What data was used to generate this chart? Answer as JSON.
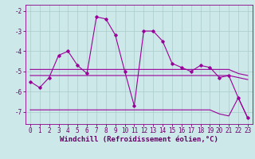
{
  "xlabel": "Windchill (Refroidissement éolien,°C)",
  "x": [
    0,
    1,
    2,
    3,
    4,
    5,
    6,
    7,
    8,
    9,
    10,
    11,
    12,
    13,
    14,
    15,
    16,
    17,
    18,
    19,
    20,
    21,
    22,
    23
  ],
  "line1": [
    -5.5,
    -5.8,
    -5.3,
    -4.2,
    -4.0,
    -4.7,
    -5.1,
    -2.3,
    -2.4,
    -3.2,
    -5.0,
    -6.7,
    -3.0,
    -3.0,
    -3.5,
    -4.6,
    -4.8,
    -5.0,
    -4.7,
    -4.8,
    -5.3,
    -5.2,
    -6.3,
    -7.3
  ],
  "line2": [
    -4.9,
    -4.9,
    -4.9,
    -4.9,
    -4.9,
    -4.9,
    -4.9,
    -4.9,
    -4.9,
    -4.9,
    -4.9,
    -4.9,
    -4.9,
    -4.9,
    -4.9,
    -4.9,
    -4.9,
    -4.9,
    -4.9,
    -4.9,
    -4.9,
    -4.9,
    -5.1,
    -5.2
  ],
  "line3": [
    -5.2,
    -5.2,
    -5.2,
    -5.2,
    -5.2,
    -5.2,
    -5.2,
    -5.2,
    -5.2,
    -5.2,
    -5.2,
    -5.2,
    -5.2,
    -5.2,
    -5.2,
    -5.2,
    -5.2,
    -5.2,
    -5.2,
    -5.2,
    -5.2,
    -5.2,
    -5.3,
    -5.4
  ],
  "line4": [
    -6.9,
    -6.9,
    -6.9,
    -6.9,
    -6.9,
    -6.9,
    -6.9,
    -6.9,
    -6.9,
    -6.9,
    -6.9,
    -6.9,
    -6.9,
    -6.9,
    -6.9,
    -6.9,
    -6.9,
    -6.9,
    -6.9,
    -6.9,
    -7.1,
    -7.2,
    -6.3,
    -7.3
  ],
  "line_color": "#990099",
  "bg_color": "#cce8e8",
  "grid_color": "#aacccc",
  "ylim": [
    -7.6,
    -1.7
  ],
  "yticks": [
    -7,
    -6,
    -5,
    -4,
    -3,
    -2
  ],
  "xticks": [
    0,
    1,
    2,
    3,
    4,
    5,
    6,
    7,
    8,
    9,
    10,
    11,
    12,
    13,
    14,
    15,
    16,
    17,
    18,
    19,
    20,
    21,
    22,
    23
  ],
  "tick_fontsize": 5.5,
  "xlabel_fontsize": 6.5
}
